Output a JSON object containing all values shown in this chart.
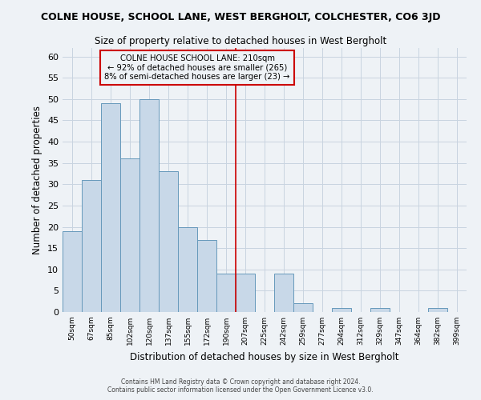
{
  "title": "COLNE HOUSE, SCHOOL LANE, WEST BERGHOLT, COLCHESTER, CO6 3JD",
  "subtitle": "Size of property relative to detached houses in West Bergholt",
  "xlabel": "Distribution of detached houses by size in West Bergholt",
  "ylabel": "Number of detached properties",
  "footnote1": "Contains HM Land Registry data © Crown copyright and database right 2024.",
  "footnote2": "Contains public sector information licensed under the Open Government Licence v3.0.",
  "bin_labels": [
    "50sqm",
    "67sqm",
    "85sqm",
    "102sqm",
    "120sqm",
    "137sqm",
    "155sqm",
    "172sqm",
    "190sqm",
    "207sqm",
    "225sqm",
    "242sqm",
    "259sqm",
    "277sqm",
    "294sqm",
    "312sqm",
    "329sqm",
    "347sqm",
    "364sqm",
    "382sqm",
    "399sqm"
  ],
  "bar_values": [
    19,
    31,
    49,
    36,
    50,
    33,
    20,
    17,
    9,
    9,
    0,
    9,
    2,
    0,
    1,
    0,
    1,
    0,
    0,
    1,
    0
  ],
  "bar_color": "#c8d8e8",
  "bar_edge_color": "#6699bb",
  "vline_index": 9,
  "vline_color": "#cc0000",
  "ylim": [
    0,
    62
  ],
  "yticks": [
    0,
    5,
    10,
    15,
    20,
    25,
    30,
    35,
    40,
    45,
    50,
    55,
    60
  ],
  "annotation_title": "COLNE HOUSE SCHOOL LANE: 210sqm",
  "annotation_line1": "← 92% of detached houses are smaller (265)",
  "annotation_line2": "8% of semi-detached houses are larger (23) →",
  "annotation_box_color": "#cc0000",
  "grid_color": "#c8d4e0",
  "bg_color": "#eef2f6",
  "title_fontsize": 9,
  "subtitle_fontsize": 8.5
}
